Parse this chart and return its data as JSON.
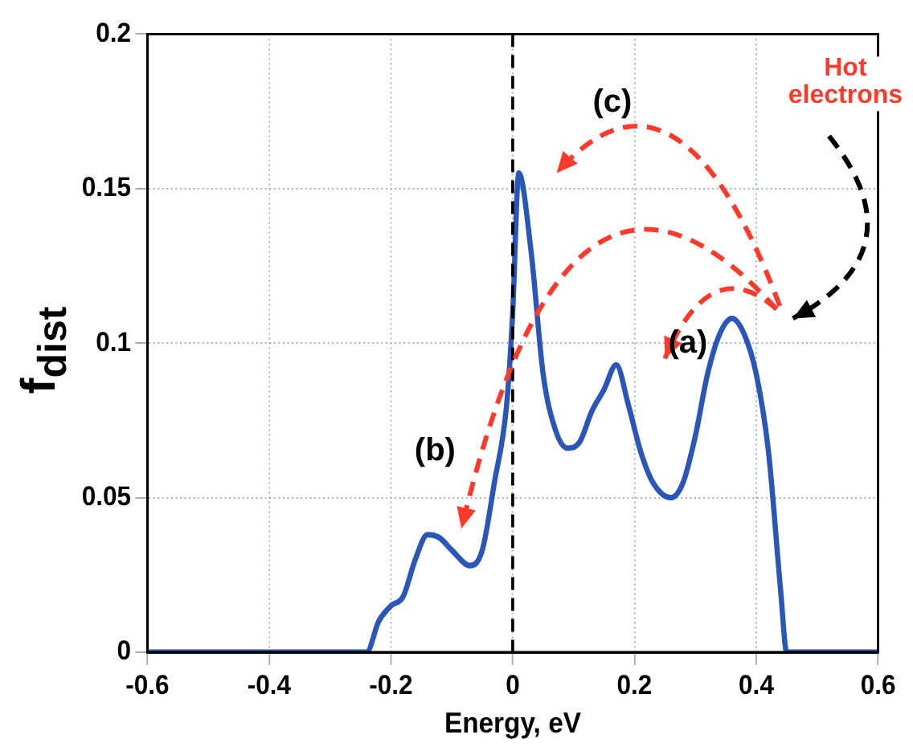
{
  "chart_data": {
    "type": "line",
    "xlabel": "Energy, eV",
    "ylabel": "f$_{dist}$",
    "x": [
      -0.6,
      -0.24,
      -0.22,
      -0.2,
      -0.18,
      -0.16,
      -0.14,
      -0.12,
      -0.1,
      -0.07,
      -0.05,
      -0.03,
      -0.01,
      0,
      0.01,
      0.03,
      0.05,
      0.07,
      0.09,
      0.11,
      0.13,
      0.15,
      0.17,
      0.19,
      0.21,
      0.23,
      0.26,
      0.28,
      0.3,
      0.32,
      0.34,
      0.36,
      0.38,
      0.4,
      0.42,
      0.44,
      0.45,
      0.6
    ],
    "series": [
      {
        "color": "#2a56b8",
        "values": [
          0,
          0,
          0.01,
          0.015,
          0.018,
          0.03,
          0.038,
          0.037,
          0.033,
          0.028,
          0.033,
          0.055,
          0.08,
          0.11,
          0.155,
          0.13,
          0.09,
          0.072,
          0.066,
          0.068,
          0.078,
          0.085,
          0.093,
          0.08,
          0.065,
          0.055,
          0.05,
          0.055,
          0.07,
          0.09,
          0.103,
          0.108,
          0.103,
          0.09,
          0.065,
          0.02,
          0,
          0
        ]
      }
    ],
    "xlim": [
      -0.6,
      0.6
    ],
    "xticks": [
      -0.6,
      -0.4,
      -0.2,
      0,
      0.2,
      0.4,
      0.6
    ],
    "ylim": [
      0,
      0.2
    ],
    "yticks": [
      0,
      0.05,
      0.1,
      0.15,
      0.2
    ],
    "grid": true,
    "legend": false,
    "marker": "none",
    "line_style": "solid",
    "ref_lines": [
      {
        "axis": "x",
        "value": 0,
        "color": "#000000",
        "line_style": "dashed"
      }
    ],
    "annotations": [
      "(a)",
      "(b)",
      "(c)",
      "Hot electrons"
    ]
  }
}
